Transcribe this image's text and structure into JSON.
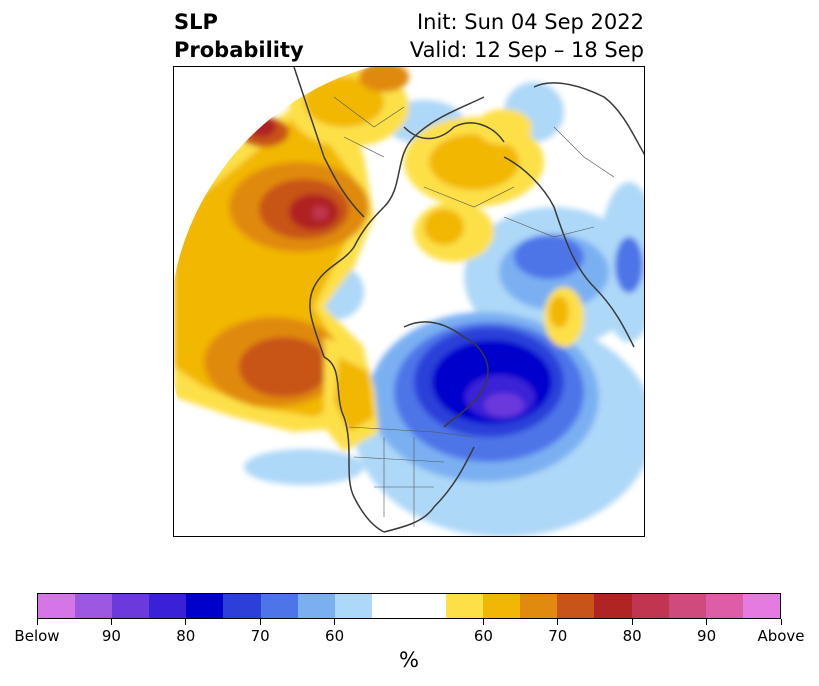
{
  "title": {
    "left_line1": "SLP",
    "left_line2": "Probability",
    "init": "Init: Sun 04 Sep 2022",
    "valid": "Valid: 12 Sep – 18 Sep"
  },
  "colorbar": {
    "units": "%",
    "segments": [
      "#d676e6",
      "#9d58e2",
      "#6b39dc",
      "#3a20d6",
      "#0000cc",
      "#2b3fd9",
      "#4d74e8",
      "#7ab0f2",
      "#aed8f8",
      "#ffffff",
      "#ffffff",
      "#fde047",
      "#f2b705",
      "#e08a10",
      "#c85418",
      "#b02424",
      "#c03650",
      "#d04b7d",
      "#dd5ea6",
      "#e57be0"
    ],
    "tick_labels": [
      "Below",
      "90",
      "80",
      "70",
      "60",
      "60",
      "70",
      "80",
      "90",
      "Above"
    ]
  }
}
